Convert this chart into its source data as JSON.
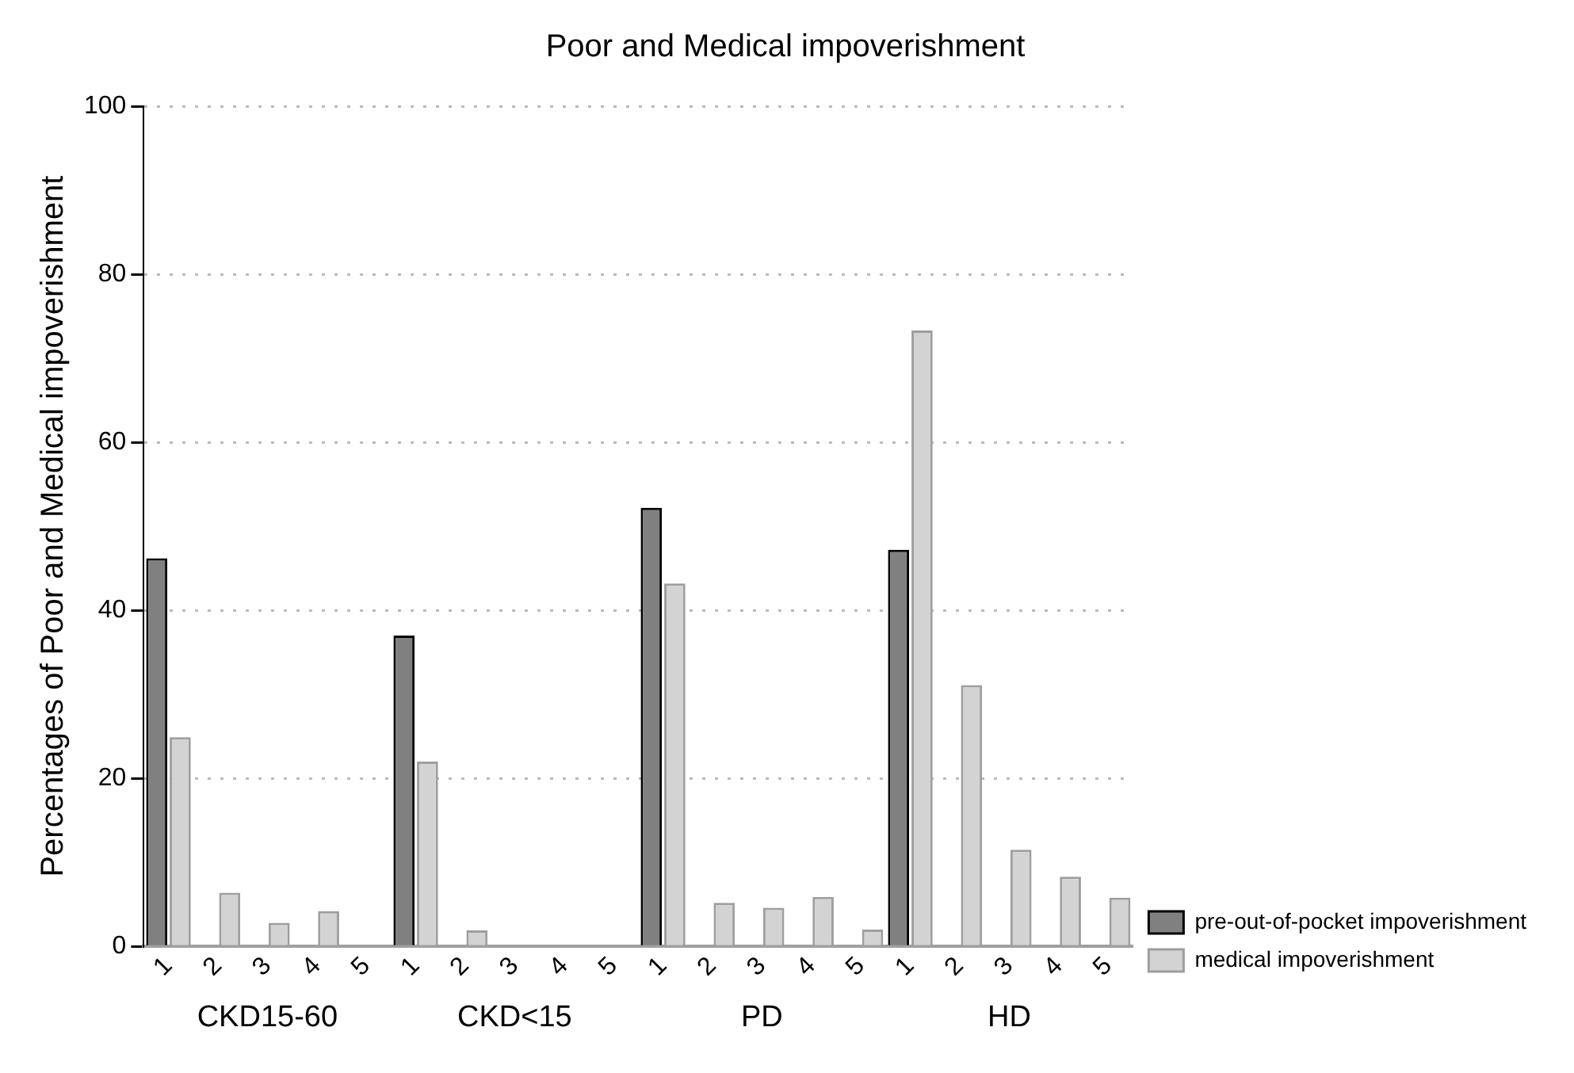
{
  "chart_data": {
    "type": "bar",
    "title": "Poor and Medical impoverishment",
    "ylabel": "Percentages of Poor and Medical impoverishment",
    "categories": [
      "1",
      "2",
      "3",
      "4",
      "5",
      "1",
      "2",
      "3",
      "4",
      "5",
      "1",
      "2",
      "3",
      "4",
      "5",
      "1",
      "2",
      "3",
      "4",
      "5"
    ],
    "annotations": [
      "CKD15-60",
      "CKD<15",
      "PD",
      "HD"
    ],
    "series": [
      {
        "name": "pre-out-of-pocket impoverishment",
        "color": "#808080",
        "values": [
          46.2,
          null,
          null,
          null,
          null,
          37,
          null,
          null,
          null,
          null,
          52.2,
          null,
          null,
          null,
          null,
          47.2,
          null,
          null,
          null,
          null
        ]
      },
      {
        "name": "medical impoverishment",
        "color": "#d3d3d3",
        "values": [
          24.9,
          6.4,
          2.8,
          4.2,
          0,
          22,
          1.9,
          0,
          0,
          0,
          43.2,
          5.2,
          4.6,
          5.9,
          2.0,
          73.3,
          31.1,
          11.5,
          8.3,
          5.8
        ]
      }
    ],
    "ylim": [
      0,
      100
    ],
    "yticks": [
      0,
      20,
      40,
      60,
      80,
      100
    ],
    "grid": "y",
    "legend": "bottom right"
  }
}
